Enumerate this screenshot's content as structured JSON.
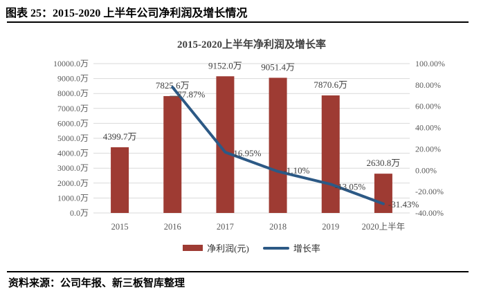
{
  "header": {
    "title": "图表 25：2015-2020 上半年公司净利润及增长情况"
  },
  "footer": {
    "source": "资料来源：公司年报、新三板智库整理"
  },
  "chart_data": {
    "type": "bar+line combo",
    "title": "2015-2020上半年净利润及增长率",
    "categories": [
      "2015",
      "2016",
      "2017",
      "2018",
      "2019",
      "2020上半年"
    ],
    "series": [
      {
        "name": "净利润(元)",
        "type": "bar",
        "axis": "left",
        "color": "#9E3B33",
        "values": [
          4399.7,
          7825.6,
          9152.0,
          9051.4,
          7870.6,
          2630.8
        ],
        "data_labels": [
          "4399.7万",
          "7825.6万",
          "9152.0万",
          "9051.4万",
          "7870.6万",
          "2630.8万"
        ]
      },
      {
        "name": "增长率",
        "type": "line",
        "axis": "right",
        "color": "#2C5985",
        "values": [
          null,
          77.87,
          16.95,
          -1.1,
          -13.05,
          -31.43
        ],
        "data_labels": [
          null,
          "77.87%",
          "16.95%",
          "-1.10%",
          "-13.05%",
          "-31.43%"
        ]
      }
    ],
    "left_axis": {
      "min": 0,
      "max": 10000,
      "step": 1000,
      "tick_labels": [
        "10000.0万",
        "9000.0万",
        "8000.0万",
        "7000.0万",
        "6000.0万",
        "5000.0万",
        "4000.0万",
        "3000.0万",
        "2000.0万",
        "1000.0万",
        "0.0万"
      ]
    },
    "right_axis": {
      "min": -40,
      "max": 100,
      "step": 20,
      "tick_labels": [
        "100.00%",
        "80.00%",
        "60.00%",
        "40.00%",
        "20.00%",
        "0.00%",
        "-20.00%",
        "-40.00%"
      ]
    },
    "legend": {
      "position": "bottom",
      "entries": [
        "净利润(元)",
        "增长率"
      ]
    },
    "grid": true,
    "colors": {
      "bar": "#9E3B33",
      "line": "#2C5985",
      "gridline": "#D9D9D9",
      "tick_text": "#595959",
      "label_text": "#404040",
      "rule": "#000000"
    }
  }
}
